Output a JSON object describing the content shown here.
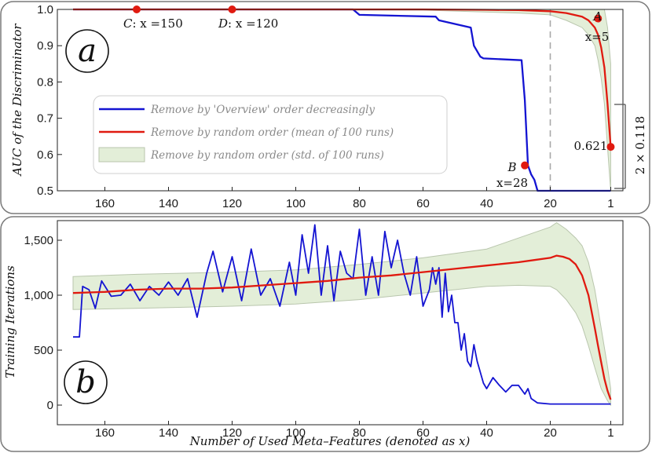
{
  "colors": {
    "blue": "#1414d2",
    "red": "#e01a10",
    "band_fill": "#e3eed8",
    "band_stroke": "#b9c6ad",
    "marker": "#e01a10",
    "panel_border": "#7a7a7a",
    "dashed_line": "#a8a8a8"
  },
  "shared": {
    "xlabel": "Number of Used Meta–Features (denoted as x)",
    "x_axis": "reversed",
    "xticks": [
      "160",
      "140",
      "120",
      "100",
      "80",
      "60",
      "40",
      "20",
      "1"
    ]
  },
  "panel_a": {
    "letter": "a",
    "ylabel": "AUC of the Discriminator",
    "yticks": [
      "0.5",
      "0.6",
      "0.7",
      "0.8",
      "0.9",
      "1.0"
    ],
    "ylim": [
      0.5,
      1.0
    ],
    "dashed_x": 20,
    "legend": {
      "placement": "center-left",
      "items": [
        {
          "label": "Remove by 'Overview' order decreasingly",
          "kind": "line",
          "color_key": "blue"
        },
        {
          "label": "Remove by random order (mean of 100 runs)",
          "kind": "line",
          "color_key": "red"
        },
        {
          "label": "Remove by random order (std. of 100 runs)",
          "kind": "band",
          "color_key": "band_fill"
        }
      ]
    },
    "annotations": {
      "C": {
        "letter": "C",
        "expr": ": x =150"
      },
      "D": {
        "letter": "D",
        "expr": ": x =120"
      },
      "A": {
        "letter": "A",
        "expr": "x=5"
      },
      "B": {
        "letter": "B",
        "expr": "x=28"
      },
      "value_label": "0.621",
      "bracket_label": "2 × 0.118"
    }
  },
  "panel_b": {
    "letter": "b",
    "ylabel": "Training Iterations",
    "yticks": [
      "0",
      "500",
      "1,000",
      "1,500"
    ],
    "ylim": [
      -50,
      1700
    ]
  },
  "chart_data": [
    {
      "type": "line",
      "title": "",
      "xlabel": "Number of Used Meta–Features (denoted as x)",
      "ylabel": "AUC of the Discriminator",
      "xlim": [
        170,
        1
      ],
      "ylim": [
        0.5,
        1.0
      ],
      "grid": false,
      "legend": "center-left",
      "series": [
        {
          "name": "Remove by 'Overview' order decreasingly",
          "x": [
            170,
            150,
            120,
            82,
            80,
            56,
            55,
            45,
            44,
            42,
            41,
            29,
            28,
            27,
            26,
            25,
            24,
            20,
            1
          ],
          "y": [
            1.0,
            1.0,
            1.0,
            1.0,
            0.985,
            0.98,
            0.97,
            0.95,
            0.9,
            0.87,
            0.865,
            0.86,
            0.75,
            0.57,
            0.545,
            0.53,
            0.5,
            0.5,
            0.5
          ]
        },
        {
          "name": "Remove by random order (mean of 100 runs)",
          "x": [
            170,
            150,
            120,
            100,
            80,
            60,
            40,
            30,
            20,
            15,
            10,
            8,
            6,
            5,
            4,
            3,
            2,
            1
          ],
          "y": [
            1.0,
            1.0,
            1.0,
            1.0,
            1.0,
            1.0,
            0.999,
            0.998,
            0.995,
            0.99,
            0.98,
            0.97,
            0.95,
            0.93,
            0.895,
            0.84,
            0.74,
            0.621
          ]
        },
        {
          "name": "Remove by random order (std. of 100 runs)",
          "x": [
            170,
            60,
            30,
            20,
            15,
            10,
            8,
            6,
            5,
            4,
            3,
            2,
            1
          ],
          "upper": [
            1.0,
            1.0,
            1.0,
            1.0,
            1.0,
            1.0,
            1.0,
            1.0,
            1.0,
            1.0,
            1.0,
            0.95,
            0.85
          ],
          "lower": [
            1.0,
            0.998,
            0.99,
            0.985,
            0.97,
            0.95,
            0.93,
            0.9,
            0.86,
            0.81,
            0.74,
            0.62,
            0.5
          ]
        }
      ],
      "points": [
        {
          "label": "C",
          "x": 150,
          "y": 1.0
        },
        {
          "label": "D",
          "x": 120,
          "y": 1.0
        },
        {
          "label": "A",
          "x": 5,
          "y": 0.975
        },
        {
          "label": "B",
          "x": 28,
          "y": 0.57
        },
        {
          "label": "0.621",
          "x": 1,
          "y": 0.621
        }
      ]
    },
    {
      "type": "line",
      "title": "",
      "xlabel": "Number of Used Meta–Features (denoted as x)",
      "ylabel": "Training Iterations",
      "xlim": [
        170,
        1
      ],
      "ylim": [
        0,
        1700
      ],
      "grid": false,
      "series": [
        {
          "name": "Remove by 'Overview' order decreasingly",
          "x": [
            170,
            168,
            167,
            165,
            163,
            161,
            158,
            155,
            152,
            149,
            146,
            143,
            140,
            137,
            134,
            131,
            128,
            126,
            123,
            120,
            117,
            114,
            111,
            108,
            105,
            102,
            100,
            98,
            96,
            94,
            92,
            90,
            88,
            86,
            84,
            82,
            80,
            78,
            76,
            74,
            72,
            70,
            68,
            66,
            64,
            62,
            60,
            58,
            57,
            56,
            55,
            54,
            53,
            52,
            51,
            50,
            49,
            48,
            47,
            46,
            45,
            44,
            43,
            42,
            41,
            40,
            38,
            36,
            34,
            32,
            30,
            28,
            27,
            26,
            24,
            20,
            10,
            1
          ],
          "y": [
            620,
            620,
            1080,
            1050,
            880,
            1130,
            990,
            1000,
            1100,
            950,
            1080,
            1000,
            1120,
            1000,
            1150,
            800,
            1200,
            1400,
            1030,
            1350,
            950,
            1420,
            1000,
            1150,
            900,
            1300,
            1000,
            1550,
            1200,
            1640,
            1000,
            1450,
            950,
            1400,
            1200,
            1150,
            1600,
            1000,
            1350,
            1000,
            1580,
            1250,
            1500,
            1200,
            1000,
            1350,
            900,
            1050,
            1250,
            1100,
            1250,
            800,
            1200,
            850,
            1000,
            750,
            750,
            500,
            650,
            400,
            350,
            550,
            400,
            300,
            200,
            150,
            250,
            180,
            120,
            180,
            180,
            100,
            150,
            60,
            20,
            10,
            10,
            10
          ]
        },
        {
          "name": "Remove by random order (mean of 100 runs)",
          "x": [
            170,
            160,
            150,
            140,
            130,
            120,
            110,
            100,
            90,
            80,
            70,
            60,
            50,
            40,
            30,
            25,
            20,
            18,
            16,
            14,
            12,
            10,
            8,
            6,
            5,
            4,
            3,
            2,
            1
          ],
          "y": [
            1020,
            1030,
            1050,
            1060,
            1060,
            1070,
            1090,
            1110,
            1130,
            1160,
            1180,
            1210,
            1240,
            1270,
            1300,
            1320,
            1340,
            1360,
            1350,
            1330,
            1280,
            1180,
            1000,
            700,
            540,
            390,
            240,
            130,
            50
          ]
        },
        {
          "name": "Remove by random order (std. of 100 runs)",
          "x": [
            170,
            150,
            120,
            100,
            80,
            60,
            40,
            30,
            20,
            18,
            15,
            12,
            10,
            8,
            6,
            4,
            2,
            1
          ],
          "upper": [
            1170,
            1190,
            1210,
            1230,
            1280,
            1340,
            1420,
            1520,
            1620,
            1660,
            1600,
            1520,
            1450,
            1300,
            1050,
            700,
            350,
            150
          ],
          "lower": [
            870,
            880,
            900,
            920,
            960,
            1020,
            1080,
            1090,
            1080,
            1050,
            960,
            840,
            720,
            540,
            340,
            150,
            40,
            0
          ]
        }
      ]
    }
  ]
}
